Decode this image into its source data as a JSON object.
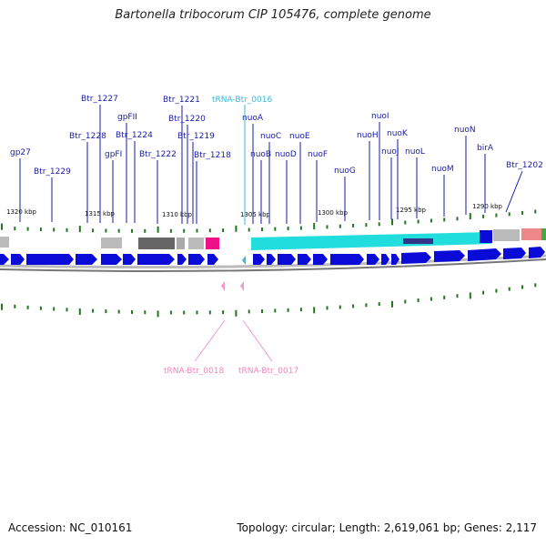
{
  "title": "Bartonella tribocorum CIP 105476, complete genome",
  "footer": {
    "accession": "Accession: NC_010161",
    "topology": "Topology: circular; Length: 2,619,061 bp; Genes: 2,117"
  },
  "colors": {
    "gene_label": "#1a1aa8",
    "trna_top": "#33bbdd",
    "trna_bottom": "#ee88bb",
    "cds_arrow": "#0b0bd8",
    "nuo_block": "#22dddd",
    "tick": "#22771e"
  },
  "kbp_labels": [
    "1320 kbp",
    "1315 kbp",
    "1310 kbp",
    "1305 kbp",
    "1300 kbp",
    "1295 kbp",
    "1290 kbp"
  ],
  "gene_labels": [
    "gp27",
    "Btr_1229",
    "Btr_1228",
    "Btr_1227",
    "gpFII",
    "gpFI",
    "Btr_1224",
    "Btr_1222",
    "Btr_1221",
    "Btr_1220",
    "Btr_1219",
    "Btr_1218",
    "nuoA",
    "nuoB",
    "nuoC",
    "nuoD",
    "nuoE",
    "nuoF",
    "nuoG",
    "nuoH",
    "nuoI",
    "nuoJ",
    "nuoK",
    "nuoL",
    "nuoM",
    "nuoN",
    "birA",
    "Btr_1202"
  ],
  "trna_top": "tRNA-Btr_0016",
  "trna_bottom": [
    "tRNA-Btr_0018",
    "tRNA-Btr_0017"
  ]
}
